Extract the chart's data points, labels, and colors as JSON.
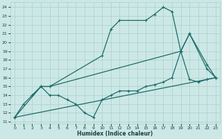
{
  "xlabel": "Humidex (Indice chaleur)",
  "xlim": [
    -0.5,
    23.5
  ],
  "ylim": [
    10.8,
    24.6
  ],
  "yticks": [
    11,
    12,
    13,
    14,
    15,
    16,
    17,
    18,
    19,
    20,
    21,
    22,
    23,
    24
  ],
  "xticks": [
    0,
    1,
    2,
    3,
    4,
    5,
    6,
    7,
    8,
    9,
    10,
    11,
    12,
    13,
    14,
    15,
    16,
    17,
    18,
    19,
    20,
    21,
    22,
    23
  ],
  "bg_color": "#cce8e6",
  "grid_color": "#aacfcd",
  "line_color": "#1b6b68",
  "lines": [
    {
      "x": [
        2,
        3,
        4,
        10,
        11,
        12,
        15,
        16,
        17,
        18,
        19,
        20,
        22,
        23
      ],
      "y": [
        14.0,
        15.0,
        15.0,
        18.5,
        21.5,
        22.5,
        22.5,
        23.2,
        24.0,
        23.5,
        19.0,
        21.0,
        17.5,
        16.0
      ]
    },
    {
      "x": [
        0,
        1,
        2,
        3,
        4,
        5,
        6,
        7,
        8,
        9,
        10,
        11,
        12,
        13,
        14,
        15,
        16,
        17,
        18,
        19,
        20,
        21,
        22,
        23
      ],
      "y": [
        11.5,
        13.0,
        14.0,
        15.0,
        14.0,
        14.0,
        13.5,
        13.0,
        12.0,
        11.5,
        13.5,
        14.0,
        14.5,
        14.5,
        14.5,
        15.0,
        15.2,
        15.5,
        16.0,
        19.0,
        15.8,
        15.5,
        15.8,
        16.0
      ]
    },
    {
      "x": [
        0,
        3,
        4,
        19,
        20,
        22,
        23
      ],
      "y": [
        11.5,
        15.0,
        15.0,
        19.0,
        21.0,
        17.0,
        16.0
      ]
    },
    {
      "x": [
        0,
        23
      ],
      "y": [
        11.5,
        16.0
      ]
    }
  ]
}
